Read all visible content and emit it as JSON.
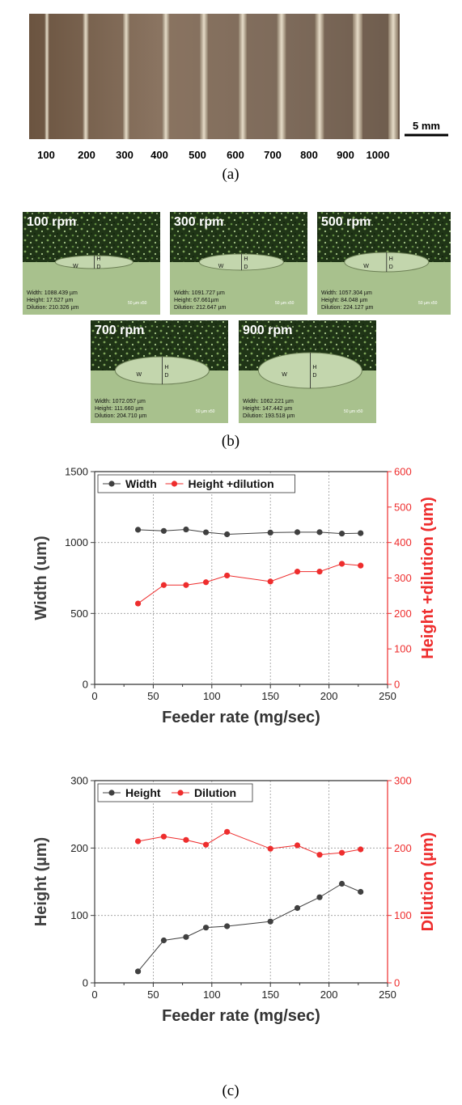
{
  "panel_a": {
    "numbers": [
      "100",
      "200",
      "300",
      "400",
      "500",
      "600",
      "700",
      "800",
      "900",
      "1000"
    ],
    "scale_bar": "5 mm",
    "caption": "(a)"
  },
  "panel_b": {
    "micrographs": [
      {
        "label": "100 rpm",
        "lines": [
          "Width: 1088.439 µm",
          "Height: 17.527 µm",
          "Dilution: 210.326 µm"
        ]
      },
      {
        "label": "300 rpm",
        "lines": [
          "Width: 1091.727 µm",
          "Height: 67.661µm",
          "Dilution: 212.647 µm"
        ]
      },
      {
        "label": "500 rpm",
        "lines": [
          "Width: 1057.304 µm",
          "Height: 84.048 µm",
          "Dilution: 224.127 µm"
        ]
      },
      {
        "label": "700 rpm",
        "lines": [
          "Width: 1072.057 µm",
          "Height: 111.660 µm",
          "Dilution: 204.710 µm"
        ]
      },
      {
        "label": "900 rpm",
        "lines": [
          "Width: 1062.221 µm",
          "Height: 147.442 µm",
          "Dilution: 193.518 µm"
        ]
      }
    ],
    "markers": {
      "w": "W",
      "h": "H",
      "d": "D"
    },
    "scale_text": "50 µm x50",
    "caption": "(b)"
  },
  "panel_c": {
    "caption": "(c)"
  },
  "chart_data": [
    {
      "type": "line",
      "xlabel": "Feeder rate (mg/sec)",
      "xlim": [
        0,
        250
      ],
      "xticks": [
        "0",
        "50",
        "100",
        "150",
        "200",
        "250"
      ],
      "ylabel": "Width (um)",
      "ylim": [
        0,
        1500
      ],
      "yticks": [
        "0",
        "500",
        "1000",
        "1500"
      ],
      "y2label": "Height +dilution (um)",
      "y2lim": [
        0,
        600
      ],
      "y2ticks": [
        "0",
        "100",
        "200",
        "300",
        "400",
        "500",
        "600"
      ],
      "grid": true,
      "legend_position": "top-left",
      "x": [
        37,
        59,
        78,
        95,
        113,
        150,
        173,
        192,
        211,
        227
      ],
      "series": [
        {
          "name": "Width",
          "axis": "left",
          "color": "#404040",
          "values": [
            1090,
            1082,
            1092,
            1072,
            1058,
            1070,
            1073,
            1073,
            1063,
            1066
          ]
        },
        {
          "name": "Height +dilution",
          "axis": "right",
          "color": "#ee2d2d",
          "values": [
            228,
            280,
            280,
            288,
            307,
            290,
            318,
            318,
            340,
            335
          ]
        }
      ]
    },
    {
      "type": "line",
      "xlabel": "Feeder rate (mg/sec)",
      "xlim": [
        0,
        250
      ],
      "xticks": [
        "0",
        "50",
        "100",
        "150",
        "200",
        "250"
      ],
      "ylabel": "Height (µm)",
      "ylim": [
        0,
        300
      ],
      "yticks": [
        "0",
        "100",
        "200",
        "300"
      ],
      "y2label": "Dilution (µm)",
      "y2lim": [
        0,
        300
      ],
      "y2ticks": [
        "0",
        "100",
        "200",
        "300"
      ],
      "grid": true,
      "legend_position": "top-left",
      "x": [
        37,
        59,
        78,
        95,
        113,
        150,
        173,
        192,
        211,
        227
      ],
      "series": [
        {
          "name": "Height",
          "axis": "left",
          "color": "#404040",
          "values": [
            17,
            63,
            68,
            82,
            84,
            91,
            111,
            127,
            147,
            135
          ]
        },
        {
          "name": "Dilution",
          "axis": "right",
          "color": "#ee2d2d",
          "values": [
            210,
            217,
            212,
            205,
            224,
            199,
            204,
            190,
            193,
            198
          ]
        }
      ]
    }
  ]
}
